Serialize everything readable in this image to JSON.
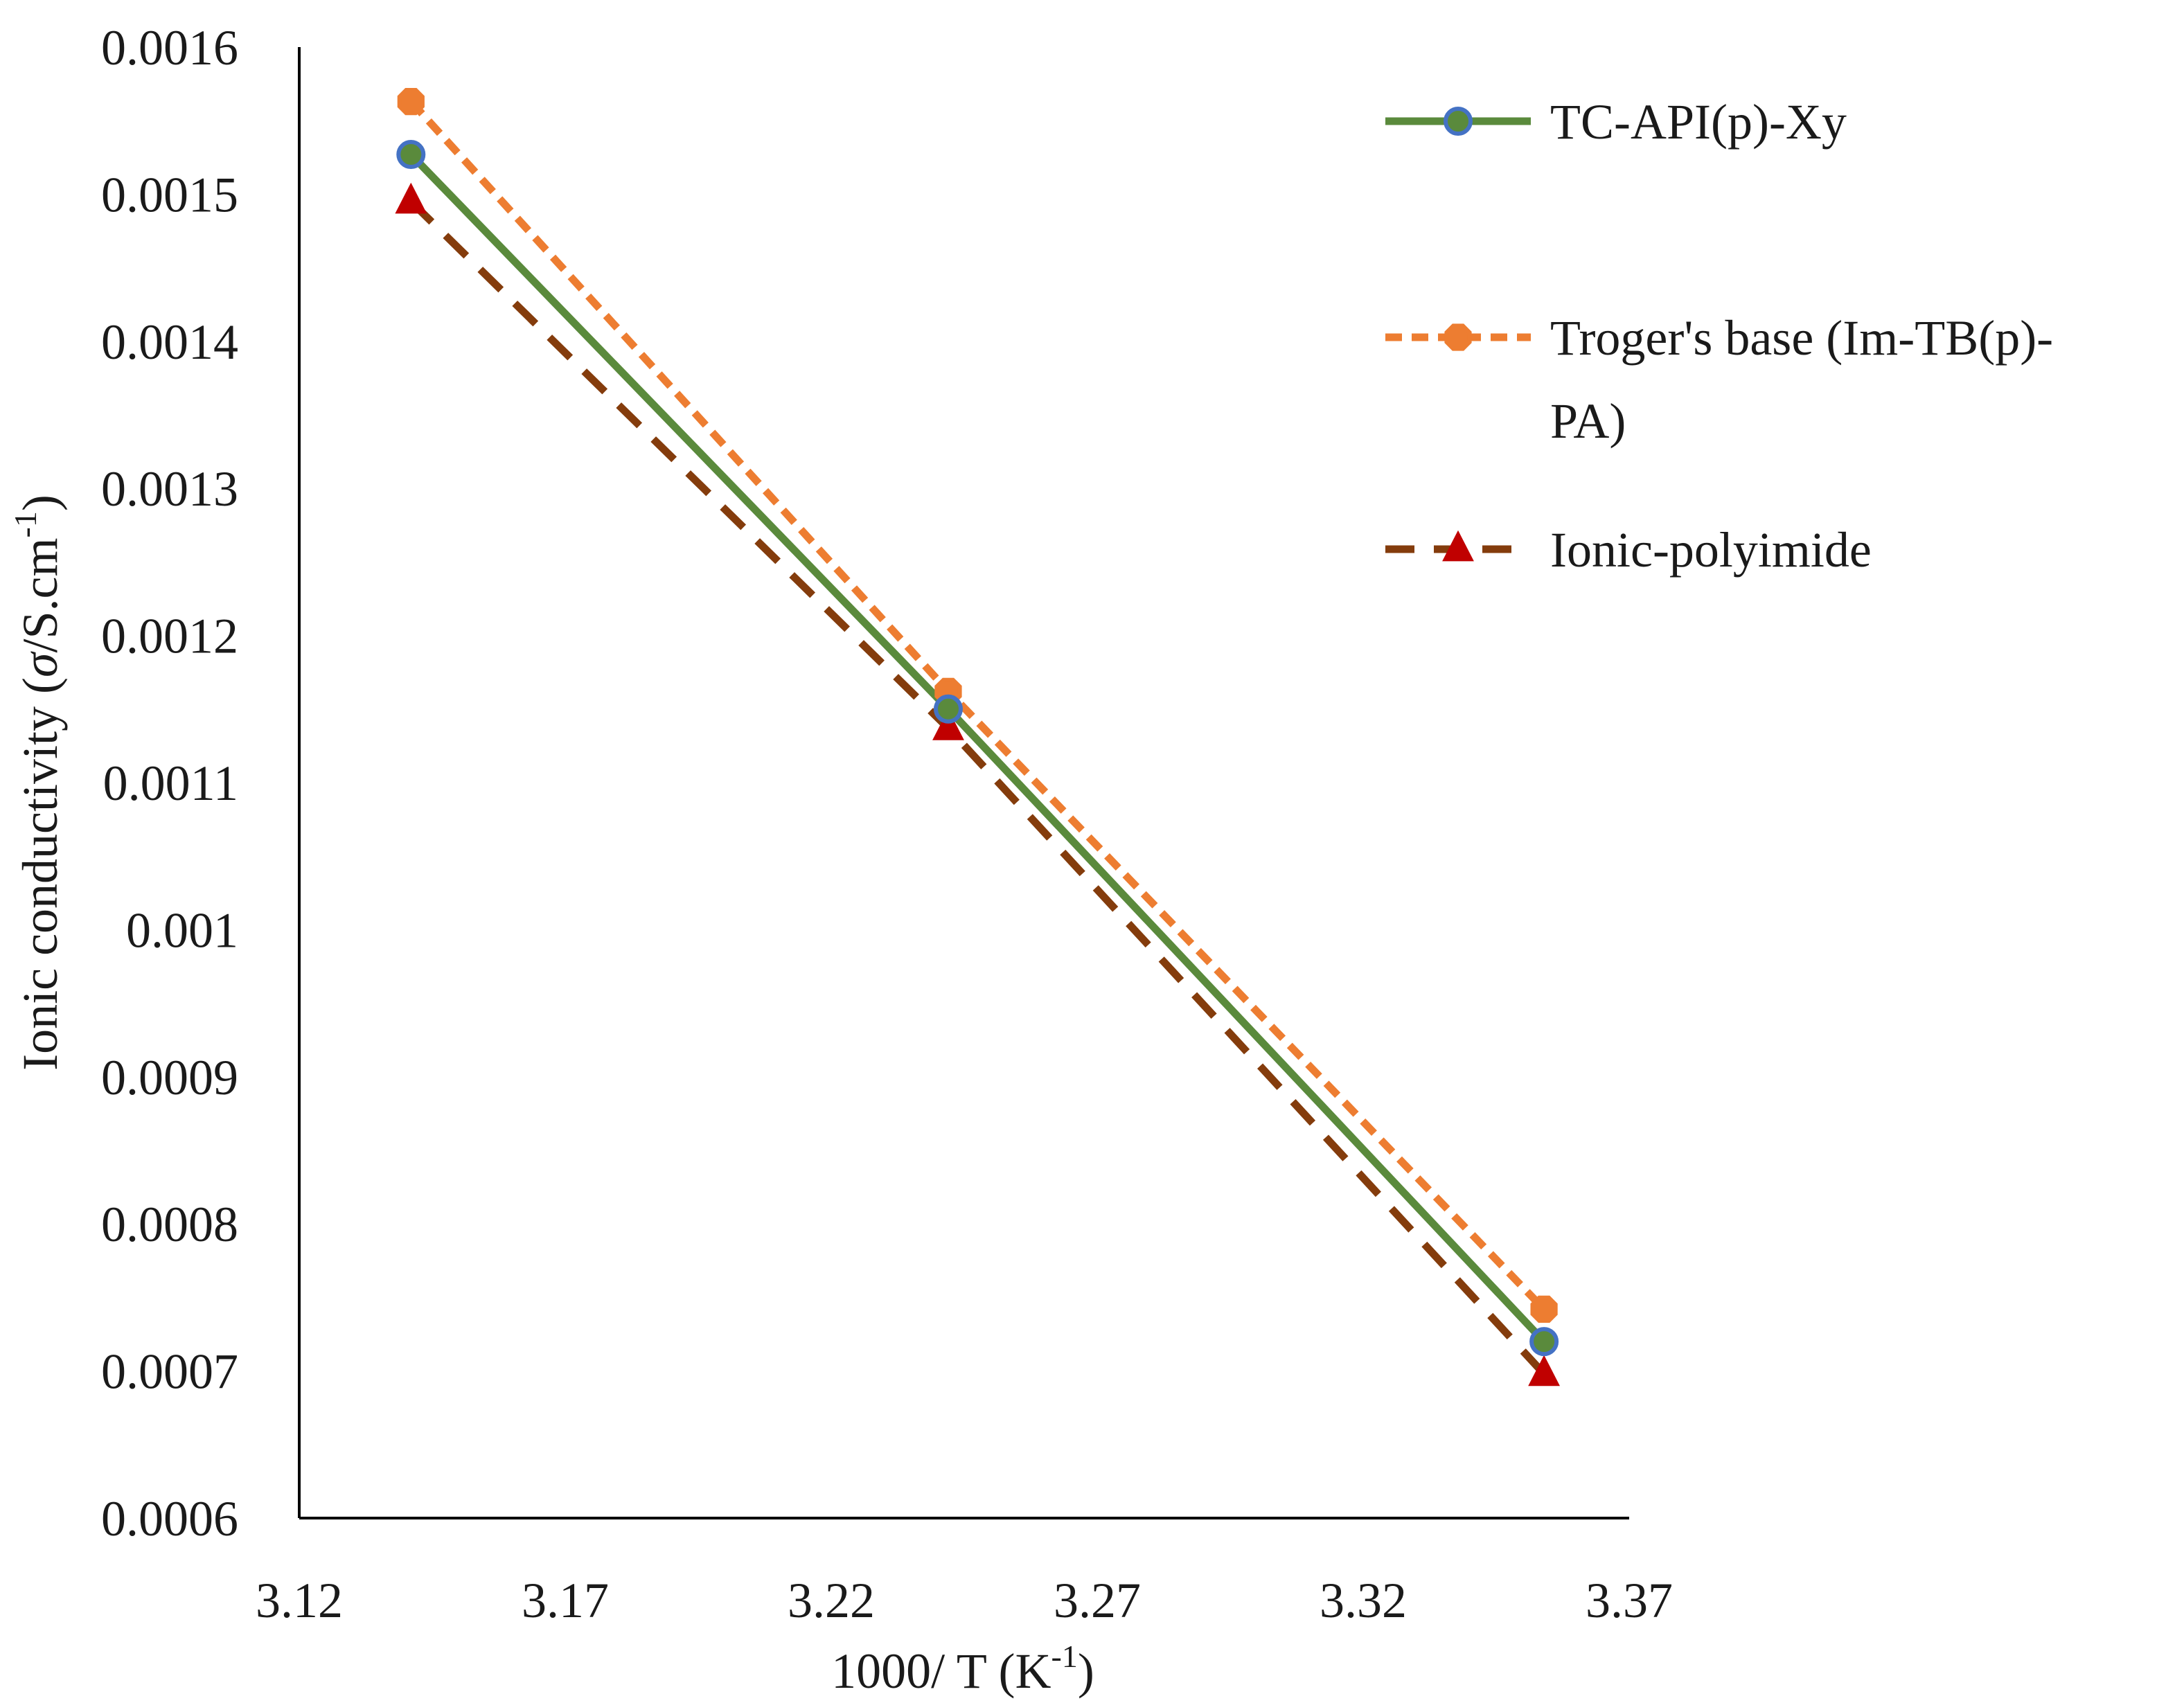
{
  "chart_data": {
    "type": "line",
    "title": "",
    "xlabel": {
      "text": "1000/ T (K",
      "sup": "-1",
      "suffix": ")"
    },
    "ylabel": {
      "text": "Ionic conductivity (",
      "sigma": "σ",
      "mid": "/S.cm",
      "sup": "-1",
      "suffix": ")"
    },
    "xlim": [
      3.12,
      3.37
    ],
    "ylim": [
      0.0006,
      0.0016
    ],
    "xticks": [
      "3.12",
      "3.17",
      "3.22",
      "3.27",
      "3.32",
      "3.37"
    ],
    "yticks": [
      "0.0006",
      "0.0007",
      "0.0008",
      "0.0009",
      "0.001",
      "0.0011",
      "0.0012",
      "0.0013",
      "0.0014",
      "0.0015",
      "0.0016"
    ],
    "grid": false,
    "legend_position": "top-right",
    "series": [
      {
        "name": "TC-API(p)-Xy",
        "line_color": "#5a8a3c",
        "marker_fill": "#5a8a3c",
        "marker_stroke": "#4472c4",
        "marker": "circle",
        "dash": "solid",
        "x": [
          3.141,
          3.242,
          3.354
        ],
        "y": [
          0.001527,
          0.00115,
          0.00072
        ]
      },
      {
        "name": "Troger's base (Im-TB(p)-PA)",
        "legend_lines": [
          "Troger's base (Im-TB(p)-",
          "PA)"
        ],
        "line_color": "#ed7d31",
        "marker_fill": "#ed7d31",
        "marker_stroke": "#ed7d31",
        "marker": "octagon",
        "dash": "short-dash",
        "x": [
          3.141,
          3.242,
          3.354
        ],
        "y": [
          0.001563,
          0.001162,
          0.000742
        ]
      },
      {
        "name": "Ionic-polyimide",
        "line_color": "#843c0c",
        "marker_fill": "#c00000",
        "marker_stroke": "#c00000",
        "marker": "triangle",
        "dash": "long-dash",
        "x": [
          3.141,
          3.242,
          3.354
        ],
        "y": [
          0.001495,
          0.001137,
          0.000698
        ]
      }
    ]
  }
}
